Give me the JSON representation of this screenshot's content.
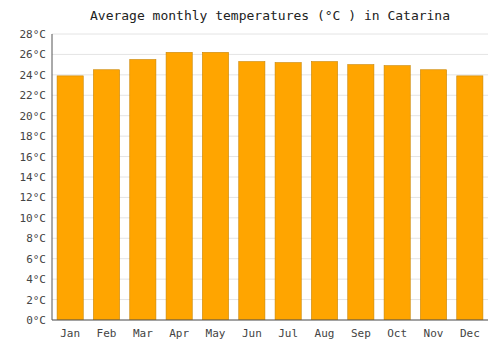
{
  "chart_data": {
    "type": "bar",
    "title": "Average monthly temperatures (°C ) in Catarina",
    "categories": [
      "Jan",
      "Feb",
      "Mar",
      "Apr",
      "May",
      "Jun",
      "Jul",
      "Aug",
      "Sep",
      "Oct",
      "Nov",
      "Dec"
    ],
    "values": [
      23.9,
      24.5,
      25.5,
      26.2,
      26.2,
      25.3,
      25.2,
      25.3,
      25.0,
      24.9,
      24.5,
      23.9
    ],
    "color": "#FFA500",
    "ylim": [
      0,
      28
    ],
    "yticks": [
      {
        "value": 0,
        "label": "0°C"
      },
      {
        "value": 2,
        "label": "2°C"
      },
      {
        "value": 4,
        "label": "4°C"
      },
      {
        "value": 6,
        "label": "6°C"
      },
      {
        "value": 8,
        "label": "8°C"
      },
      {
        "value": 10,
        "label": "10°C"
      },
      {
        "value": 12,
        "label": "12°C"
      },
      {
        "value": 14,
        "label": "14°C"
      },
      {
        "value": 16,
        "label": "16°C"
      },
      {
        "value": 18,
        "label": "18°C"
      },
      {
        "value": 20,
        "label": "20°C"
      },
      {
        "value": 22,
        "label": "22°C"
      },
      {
        "value": 24,
        "label": "24°C"
      },
      {
        "value": 26,
        "label": "26°C"
      },
      {
        "value": 28,
        "label": "28°C"
      }
    ],
    "grid": true
  }
}
